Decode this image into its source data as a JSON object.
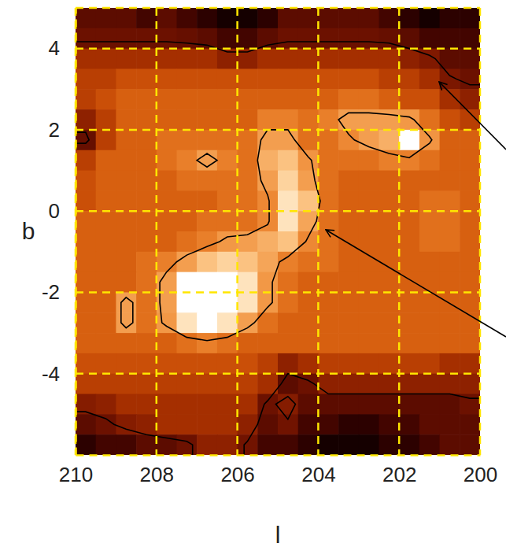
{
  "chart_data": {
    "type": "heatmap",
    "x_label": "l",
    "y_label": "b",
    "xlim": [
      210,
      200
    ],
    "ylim": [
      -6,
      5
    ],
    "xticks": [
      210,
      208,
      206,
      204,
      202,
      200
    ],
    "yticks": [
      -4,
      -2,
      0,
      2,
      4
    ],
    "grid": true,
    "x": [
      209.75,
      209.25,
      208.75,
      208.25,
      207.75,
      207.25,
      206.75,
      206.25,
      205.75,
      205.25,
      204.75,
      204.25,
      203.75,
      203.25,
      202.75,
      202.25,
      201.75,
      201.25,
      200.75,
      200.25
    ],
    "y": [
      4.75,
      4.25,
      3.75,
      3.25,
      2.75,
      2.25,
      1.75,
      1.25,
      0.75,
      0.25,
      -0.25,
      -0.75,
      -1.25,
      -1.75,
      -2.25,
      -2.75,
      -3.25,
      -3.75,
      -4.25,
      -4.75,
      -5.25,
      -5.75
    ],
    "z": [
      [
        2,
        2,
        2,
        1.5,
        2,
        1.5,
        1,
        0.5,
        0.5,
        1,
        2,
        2,
        2,
        2,
        2,
        1.5,
        1,
        0.5,
        1,
        1
      ],
      [
        2.3,
        2.3,
        2.3,
        2.3,
        2.3,
        2.2,
        2,
        1.5,
        1.5,
        2,
        2.3,
        2.3,
        2.3,
        2.3,
        2.3,
        2.2,
        2,
        1.5,
        1.5,
        1.5
      ],
      [
        3.5,
        3.5,
        3.5,
        3.5,
        3.5,
        3.5,
        3.5,
        3,
        3,
        3.5,
        3.5,
        3.5,
        3.5,
        3.5,
        3.5,
        3.5,
        3,
        2.7,
        2,
        2
      ],
      [
        4,
        4,
        4.5,
        4.5,
        4.5,
        4.5,
        4.5,
        4.5,
        4.5,
        4.5,
        4.5,
        4.5,
        4.5,
        4.5,
        4.5,
        4,
        4,
        3.5,
        2.6,
        2.3
      ],
      [
        4,
        4.5,
        5,
        5,
        5,
        5,
        5,
        5,
        5,
        5,
        5,
        5,
        5,
        5.5,
        5.5,
        5,
        4.5,
        4.5,
        3.5,
        3
      ],
      [
        3,
        4,
        5,
        5,
        5,
        5,
        5,
        5,
        5,
        6,
        6,
        5.5,
        6,
        7,
        7,
        7,
        6.8,
        5.5,
        4.5,
        4
      ],
      [
        2.2,
        4,
        5,
        5,
        5.5,
        5.5,
        5.5,
        5.5,
        5.5,
        7,
        7,
        5.5,
        5.5,
        6.3,
        7,
        7.5,
        10,
        6.7,
        5,
        5
      ],
      [
        4,
        5,
        5,
        5,
        5.5,
        6,
        7,
        6,
        5.5,
        7.5,
        8,
        6.7,
        5.5,
        5.5,
        5.5,
        6,
        6,
        5.5,
        5,
        5
      ],
      [
        4.5,
        5,
        5,
        5,
        5,
        5.5,
        5.5,
        5.5,
        5.5,
        7,
        8.5,
        7,
        5.5,
        5,
        5,
        5,
        5,
        5,
        5,
        5
      ],
      [
        4.5,
        5,
        5,
        5,
        5,
        5,
        5,
        5.5,
        5.5,
        6.3,
        9,
        8,
        5.5,
        5,
        5,
        5,
        5,
        5.5,
        5.5,
        5
      ],
      [
        5,
        5,
        5,
        5,
        5,
        5,
        5.5,
        5.5,
        5.5,
        6.3,
        9,
        7.2,
        5.5,
        5,
        5,
        5,
        5,
        5.5,
        5.5,
        5
      ],
      [
        5,
        5,
        5,
        5,
        5,
        5.5,
        6,
        6.8,
        7,
        7.5,
        8,
        6.3,
        5.5,
        5,
        5,
        5,
        5,
        5.5,
        5.5,
        5
      ],
      [
        5,
        5,
        5,
        5.5,
        6,
        7,
        8,
        8.5,
        8,
        7.2,
        6,
        5.5,
        5.5,
        5,
        5,
        5,
        5,
        5,
        5,
        5
      ],
      [
        5,
        5,
        5,
        5.5,
        7,
        10,
        10,
        10,
        9,
        6.8,
        5.5,
        5,
        5,
        5,
        5,
        5,
        5,
        5,
        5,
        5
      ],
      [
        5,
        5,
        7,
        5.5,
        7,
        10,
        10,
        10,
        9,
        6.8,
        5.5,
        5,
        5,
        5,
        5,
        5,
        5,
        5,
        5,
        5
      ],
      [
        5,
        5,
        7,
        5.5,
        6.8,
        9,
        10,
        9,
        7,
        5.5,
        5,
        5,
        5,
        5,
        5,
        5,
        5,
        5,
        5,
        5
      ],
      [
        5,
        5,
        5,
        5,
        5,
        5.5,
        6,
        5.5,
        5,
        5,
        5,
        5,
        5,
        5,
        5,
        5,
        5,
        5,
        5,
        5
      ],
      [
        4.5,
        4.5,
        4.5,
        4.5,
        4.5,
        4.5,
        4.5,
        4.5,
        4.5,
        4,
        3,
        3.5,
        4,
        4,
        4,
        4,
        4,
        4,
        3.5,
        3.5
      ],
      [
        4,
        4,
        4,
        4,
        4,
        4,
        4,
        4,
        4,
        3.5,
        2,
        2.3,
        3,
        3,
        3,
        3,
        3,
        3,
        3,
        3
      ],
      [
        2.8,
        3,
        3.5,
        3.5,
        3.5,
        3.5,
        3.5,
        3.5,
        3.5,
        2.3,
        2.8,
        2,
        2,
        2,
        2,
        2,
        2,
        2,
        2,
        2.3
      ],
      [
        2,
        2.3,
        2.8,
        3,
        3.5,
        3.5,
        3.5,
        3.5,
        3,
        2,
        2.4,
        1.5,
        1.5,
        1,
        1,
        1.5,
        1.5,
        2,
        2,
        2
      ],
      [
        1,
        1.5,
        1.5,
        2,
        2,
        2.3,
        3,
        3,
        2.4,
        1.5,
        1.5,
        1,
        0.5,
        0.5,
        0.5,
        1,
        1,
        1.5,
        2,
        2
      ]
    ],
    "zlim": [
      0,
      10
    ],
    "contour_levels": [
      2.5,
      6.5
    ]
  }
}
